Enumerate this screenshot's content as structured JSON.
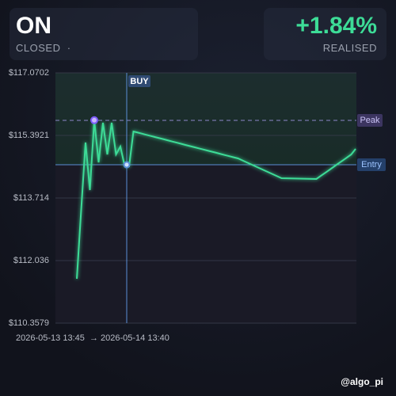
{
  "header": {
    "ticker": "ON",
    "status": "CLOSED",
    "separator": "·",
    "pnl": "+1.84%",
    "pnl_label": "REALISED"
  },
  "watermark": "@algo_pi",
  "chart_data": {
    "type": "line",
    "x_range": {
      "start": "2026-05-13 13:45",
      "arrow": "→",
      "end": "2026-05-14 13:40"
    },
    "categories": [
      null,
      null,
      null,
      null,
      null,
      null,
      null,
      null,
      null,
      null,
      null,
      null,
      null,
      null,
      null,
      null,
      null,
      null,
      null,
      null,
      null,
      null,
      null,
      null,
      null,
      null,
      null,
      null,
      null,
      null,
      null,
      null,
      null,
      null,
      null,
      null,
      null,
      null,
      null,
      null,
      null,
      null,
      null,
      null,
      null,
      null,
      null,
      null,
      null,
      null,
      null,
      null,
      null,
      null,
      null,
      null,
      null,
      null,
      null,
      null,
      null,
      null,
      null,
      null,
      null
    ],
    "series": [
      {
        "color": "#3ddc97",
        "values": [
          111.548,
          113.395,
          115.201,
          113.927,
          115.8,
          114.67,
          115.732,
          114.882,
          115.732,
          114.882,
          115.095,
          114.564,
          114.564,
          115.498,
          115.468,
          115.438,
          115.408,
          115.378,
          115.347,
          115.317,
          115.287,
          115.257,
          115.227,
          115.197,
          115.167,
          115.136,
          115.106,
          115.076,
          115.046,
          115.016,
          114.986,
          114.956,
          114.926,
          114.896,
          114.866,
          114.836,
          114.806,
          114.776,
          114.723,
          114.67,
          114.617,
          114.564,
          114.511,
          114.458,
          114.404,
          114.351,
          114.298,
          114.245,
          114.242,
          114.24,
          114.237,
          114.234,
          114.232,
          114.229,
          114.226,
          114.224,
          114.306,
          114.388,
          114.471,
          114.553,
          114.635,
          114.717,
          114.8,
          114.882,
          115.031
        ]
      }
    ],
    "ylim": [
      110.3579,
      117.0702
    ],
    "yticks": [
      {
        "value": 110.3579,
        "label": "$110.3579"
      },
      {
        "value": 112.036,
        "label": "$112.036"
      },
      {
        "value": 113.714,
        "label": "$113.714"
      },
      {
        "value": 115.3921,
        "label": "$115.3921"
      },
      {
        "value": 117.0702,
        "label": "$117.0702"
      }
    ],
    "grid": true,
    "peak": {
      "label": "Peak",
      "value": 115.796
    },
    "entry": {
      "label": "Entry",
      "value": 114.606
    },
    "buy": {
      "label": "BUY"
    }
  }
}
